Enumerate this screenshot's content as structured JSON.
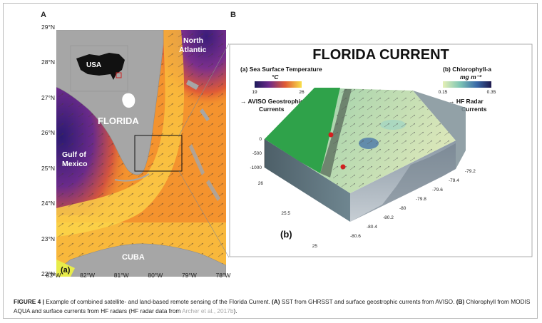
{
  "figure": {
    "panel_a_letter": "A",
    "panel_b_letter": "B"
  },
  "panel_a": {
    "lat_labels": [
      "29°N",
      "28°N",
      "27°N",
      "26°N",
      "25°N",
      "24°N",
      "23°N",
      "22°N"
    ],
    "lon_labels": [
      "83°W",
      "82°W",
      "81°W",
      "80°W",
      "79°W",
      "78°W"
    ],
    "map_labels": {
      "usa": "USA",
      "florida": "FLORIDA",
      "gulf_line1": "Gulf of",
      "gulf_line2": "Mexico",
      "north_line1": "North",
      "north_line2": "Atlantic",
      "cuba": "CUBA",
      "sub": "(a)"
    }
  },
  "panel_b": {
    "title": "FLORIDA CURRENT",
    "sst_title": "(a) Sea Surface Temperature",
    "sst_unit": "°C",
    "sst_min": "19",
    "sst_max": "26",
    "aviso_line1": "→ AVISO Geostrophic",
    "aviso_line2": "Currents",
    "chl_title": "(b) Chlorophyll-a",
    "chl_unit": "mg m⁻³",
    "chl_min": "0.15",
    "chl_max": "0.35",
    "hf_line1": "→ HF Radar",
    "hf_line2": "Currents",
    "depth_ticks": [
      "0",
      "-500",
      "-1000"
    ],
    "lat_ticks": [
      "26",
      "25.5",
      "25"
    ],
    "lon_ticks": [
      "-80.6",
      "-80.4",
      "-80.2",
      "-80",
      "-79.8",
      "-79.6",
      "-79.4",
      "-79.2"
    ],
    "sub": "(b)"
  },
  "caption": {
    "fig_label": "FIGURE 4 |",
    "text1": " Example of combined satellite- and land-based remote sensing of the Florida Current. ",
    "a_label": "(A)",
    "text2": " SST from GHRSST and surface geostrophic currents from AVISO. ",
    "b_label": "(B)",
    "text3": " Chlorophyll from MODIS AQUA and surface currents from HF radars (HF radar data from ",
    "cite": "Archer et al., 2017b",
    "text4": ")."
  },
  "colors": {
    "land": "#a6a6a6",
    "sst_warm": "#f9a62c",
    "sst_cool": "#3a1c7a",
    "chl_low": "#d8eab8",
    "chl_high": "#1f1a4e",
    "hf_land": "#2fa24a"
  }
}
